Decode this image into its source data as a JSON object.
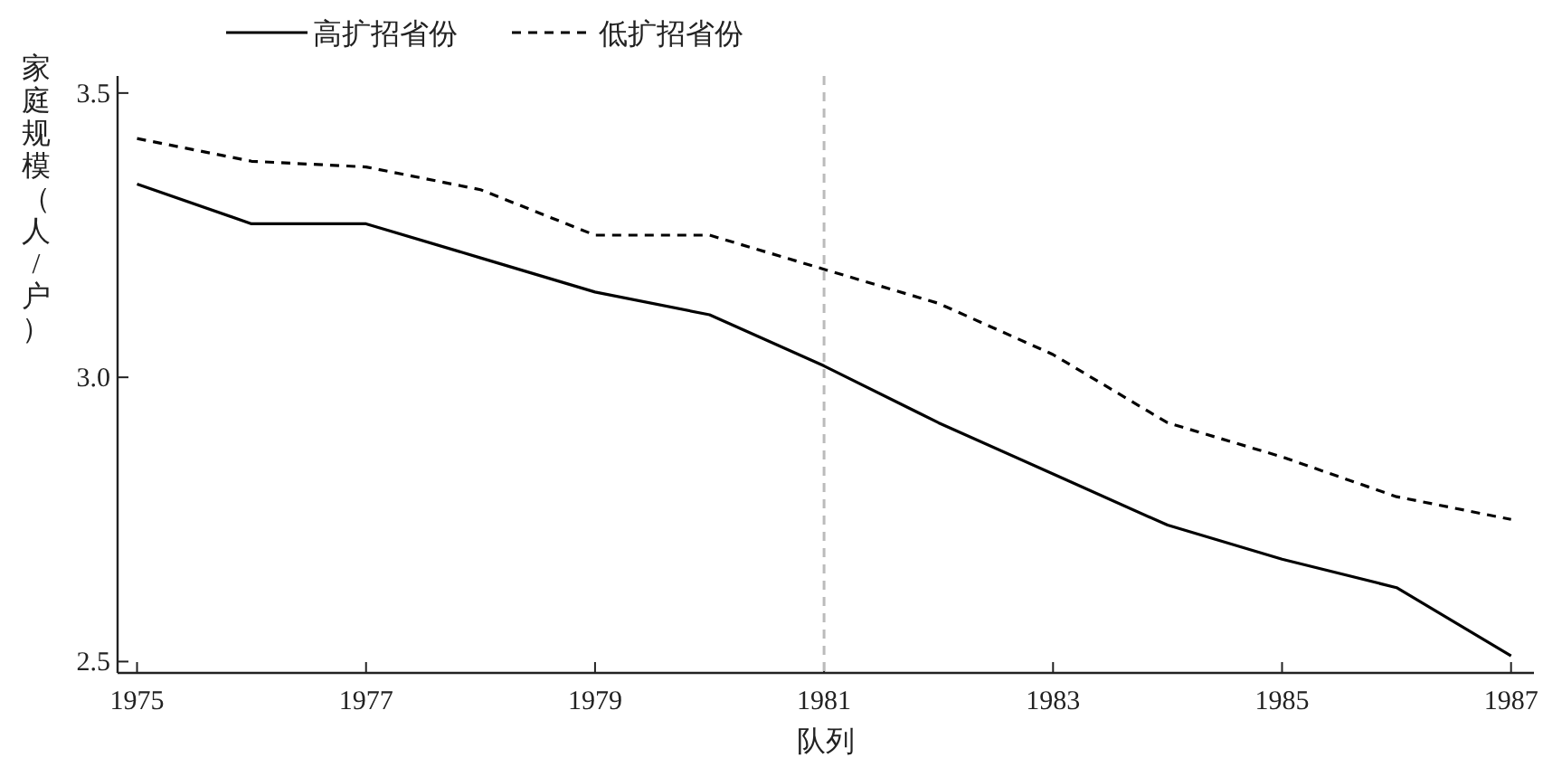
{
  "chart_data": {
    "type": "line",
    "xlabel": "队列",
    "ylabel": "家庭规模（人/户）",
    "x": [
      1975,
      1976,
      1977,
      1978,
      1979,
      1980,
      1981,
      1982,
      1983,
      1984,
      1985,
      1986,
      1987
    ],
    "series": [
      {
        "name": "高扩招省份",
        "color": "#000000",
        "line_style": "solid",
        "values": [
          3.34,
          3.27,
          3.27,
          3.21,
          3.15,
          3.11,
          3.02,
          2.92,
          2.83,
          2.74,
          2.68,
          2.63,
          2.51
        ]
      },
      {
        "name": "低扩招省份",
        "color": "#000000",
        "line_style": "dashed",
        "values": [
          3.42,
          3.38,
          3.37,
          3.33,
          3.25,
          3.25,
          3.19,
          3.13,
          3.04,
          2.92,
          2.86,
          2.79,
          2.75
        ]
      }
    ],
    "xlim": [
      1974.83,
      1987.2
    ],
    "ylim": [
      2.48,
      3.53
    ],
    "xticks": [
      1975,
      1977,
      1979,
      1981,
      1983,
      1985,
      1987
    ],
    "yticks": [
      2.5,
      {
        "value": 3,
        "label": "3.0"
      },
      3.5
    ],
    "ref_lines": [
      {
        "axis": "x",
        "value": 1981,
        "color": "#bbbbbb",
        "line_style": "dashed"
      }
    ],
    "legend": "top left",
    "grid": false,
    "marker": "none"
  }
}
